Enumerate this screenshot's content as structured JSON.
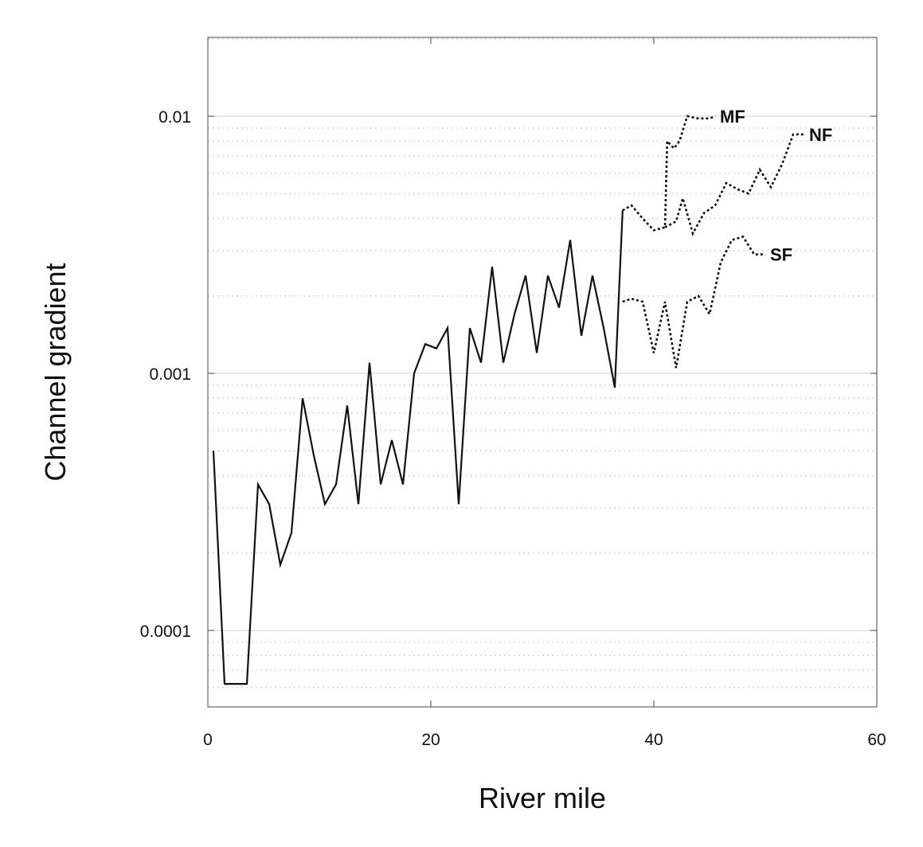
{
  "chart_data": {
    "type": "line",
    "title": "",
    "xlabel": "River mile",
    "ylabel": "Channel gradient",
    "xlim": [
      0,
      60
    ],
    "ylim": [
      5e-05,
      0.02
    ],
    "yscale": "log",
    "grid": "horizontal",
    "xticks": [
      0,
      20,
      40,
      60
    ],
    "xtick_labels": [
      "0",
      "20",
      "40",
      "60"
    ],
    "yticks": [
      0.0001,
      0.001,
      0.01
    ],
    "ytick_labels": [
      "0.0001",
      "0.001",
      "0.01"
    ],
    "series": [
      {
        "style": "solid",
        "x": [
          0.5,
          1.5,
          2.5,
          3.5,
          4.5,
          5.5,
          6.5,
          7.5,
          8.5,
          9.5,
          10.5,
          11.5,
          12.5,
          13.5,
          14.5,
          15.5,
          16.5,
          17.5,
          18.5,
          19.5,
          20.5,
          21.5,
          22.5,
          23.5,
          24.5,
          25.5,
          26.5,
          27.5,
          28.5,
          29.5,
          30.5,
          31.5,
          32.5,
          33.5,
          34.5,
          35.5,
          36.5,
          37.2
        ],
        "y": [
          0.0005,
          6.2e-05,
          6.2e-05,
          6.2e-05,
          0.00037,
          0.00031,
          0.00018,
          0.00024,
          0.0008,
          0.00048,
          0.00031,
          0.00037,
          0.00075,
          0.00031,
          0.0011,
          0.00037,
          0.00055,
          0.00037,
          0.001,
          0.0013,
          0.00125,
          0.0015,
          0.00031,
          0.0015,
          0.0011,
          0.0026,
          0.0011,
          0.0017,
          0.0024,
          0.0012,
          0.0024,
          0.0018,
          0.0033,
          0.0014,
          0.0024,
          0.0015,
          0.00088,
          0.0043
        ]
      },
      {
        "name": "MF",
        "style": "dotted",
        "x": [
          37.2,
          38.0,
          39.0,
          40.0,
          41.0,
          41.2,
          41.8,
          42.3,
          43.0,
          44.0,
          45.0,
          45.5
        ],
        "y": [
          0.0043,
          0.0045,
          0.004,
          0.0036,
          0.0037,
          0.008,
          0.0075,
          0.008,
          0.01,
          0.0098,
          0.0098,
          0.01
        ]
      },
      {
        "name": "NF",
        "style": "dotted",
        "x": [
          41.0,
          42.0,
          42.6,
          43.5,
          44.5,
          45.5,
          46.5,
          47.5,
          48.5,
          49.5,
          50.5,
          51.5,
          52.5,
          53.5
        ],
        "y": [
          0.0037,
          0.0039,
          0.0048,
          0.0035,
          0.0042,
          0.0045,
          0.0055,
          0.0052,
          0.005,
          0.0062,
          0.0053,
          0.0065,
          0.0085,
          0.0085
        ]
      },
      {
        "name": "SF",
        "style": "dotted",
        "x": [
          37.2,
          38.0,
          39.0,
          40.0,
          41.0,
          42.0,
          43.0,
          44.0,
          45.0,
          46.0,
          47.0,
          48.0,
          49.0,
          50.0
        ],
        "y": [
          0.0019,
          0.00195,
          0.0019,
          0.0012,
          0.0019,
          0.00105,
          0.0019,
          0.002,
          0.0017,
          0.0027,
          0.0033,
          0.0034,
          0.0029,
          0.0029
        ]
      }
    ]
  }
}
